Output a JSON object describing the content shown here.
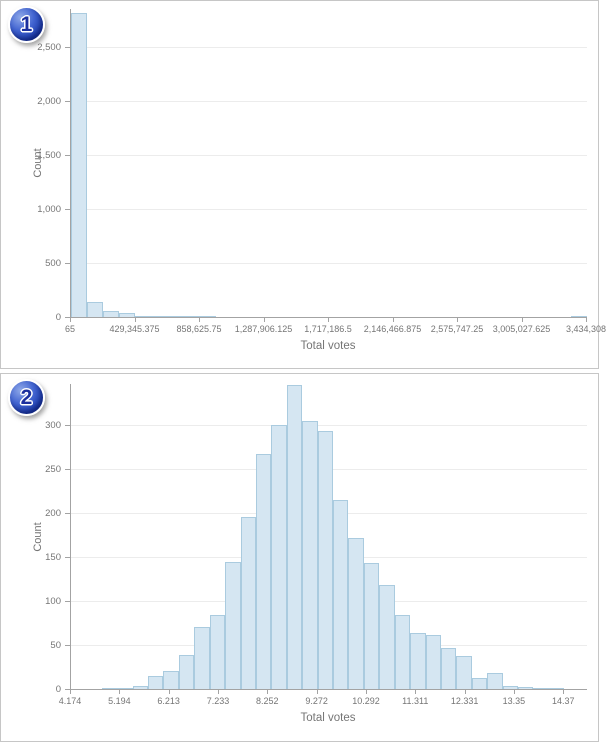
{
  "colors": {
    "bar_fill": "#d5e6f2",
    "bar_border": "#aacbdf",
    "axis_line": "#a3a3a3",
    "grid_line": "#ececec",
    "tick_text": "#757575",
    "axis_title_text": "#757575",
    "panel_border": "#c6c6c6",
    "badge_blue": "#1c3cae",
    "badge_number": "#1b2f9e"
  },
  "chart_data": [
    {
      "type": "histogram",
      "badge": "1",
      "title": "",
      "xlabel": "Total votes",
      "ylabel": "Count",
      "xlim": [
        65,
        3434308
      ],
      "ylim": [
        0,
        2850
      ],
      "grid": "horizontal",
      "legend": "none",
      "bin_start": 65,
      "bin_width": 107320.09,
      "counts": [
        2815,
        140,
        55,
        34,
        13,
        7,
        9,
        4,
        1,
        0,
        0,
        0,
        0,
        0,
        0,
        0,
        0,
        0,
        0,
        0,
        0,
        0,
        0,
        0,
        0,
        0,
        0,
        0,
        0,
        0,
        0,
        1
      ],
      "x_ticks": [
        {
          "label": "65",
          "v": 65
        },
        {
          "label": "429,345.375",
          "v": 429345.375
        },
        {
          "label": "858,625.75",
          "v": 858625.75
        },
        {
          "label": "1,287,906.125",
          "v": 1287906.125
        },
        {
          "label": "1,717,186.5",
          "v": 1717186.5
        },
        {
          "label": "2,146,466.875",
          "v": 2146466.875
        },
        {
          "label": "2,575,747.25",
          "v": 2575747.25
        },
        {
          "label": "3,005,027.625",
          "v": 3005027.625
        },
        {
          "label": "3,434,308",
          "v": 3434308
        }
      ],
      "y_ticks": [
        {
          "label": "0",
          "v": 0
        },
        {
          "label": "500",
          "v": 500
        },
        {
          "label": "1,000",
          "v": 1000
        },
        {
          "label": "1,500",
          "v": 1500
        },
        {
          "label": "2,000",
          "v": 2000
        },
        {
          "label": "2,500",
          "v": 2500
        }
      ]
    },
    {
      "type": "histogram",
      "badge": "2",
      "title": "",
      "xlabel": "Total votes",
      "ylabel": "Count",
      "xlim": [
        4.174,
        14.84
      ],
      "ylim": [
        0,
        347
      ],
      "grid": "horizontal",
      "legend": "none",
      "bin_start": 4.174,
      "bin_width": 0.31863,
      "counts": [
        0,
        0,
        1,
        1,
        3,
        15,
        20,
        39,
        71,
        84,
        145,
        196,
        267,
        300,
        346,
        305,
        294,
        215,
        172,
        143,
        118,
        84,
        64,
        62,
        47,
        37,
        13,
        18,
        3,
        2,
        1,
        1
      ],
      "x_ticks": [
        {
          "label": "4.174",
          "v": 4.174
        },
        {
          "label": "5.194",
          "v": 5.194
        },
        {
          "label": "6.213",
          "v": 6.213
        },
        {
          "label": "7.233",
          "v": 7.233
        },
        {
          "label": "8.252",
          "v": 8.252
        },
        {
          "label": "9.272",
          "v": 9.272
        },
        {
          "label": "10.292",
          "v": 10.292
        },
        {
          "label": "11.311",
          "v": 11.311
        },
        {
          "label": "12.331",
          "v": 12.331
        },
        {
          "label": "13.35",
          "v": 13.35
        },
        {
          "label": "14.37",
          "v": 14.37
        }
      ],
      "y_ticks": [
        {
          "label": "0",
          "v": 0
        },
        {
          "label": "50",
          "v": 50
        },
        {
          "label": "100",
          "v": 100
        },
        {
          "label": "150",
          "v": 150
        },
        {
          "label": "200",
          "v": 200
        },
        {
          "label": "250",
          "v": 250
        },
        {
          "label": "300",
          "v": 300
        }
      ]
    }
  ]
}
